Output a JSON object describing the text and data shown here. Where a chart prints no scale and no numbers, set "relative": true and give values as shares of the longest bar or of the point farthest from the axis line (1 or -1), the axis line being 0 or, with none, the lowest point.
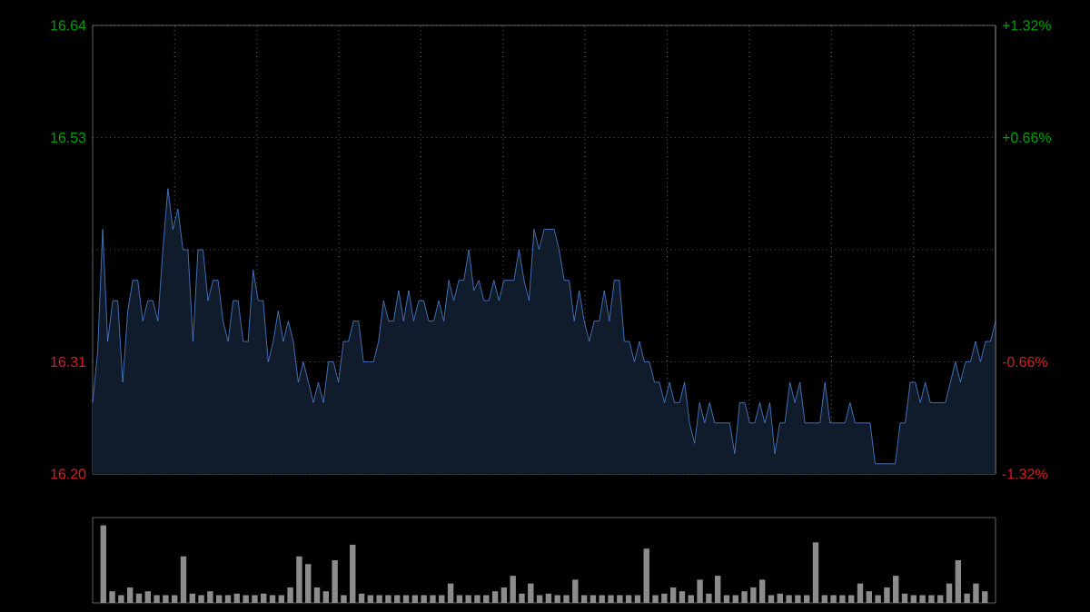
{
  "chart_data": [
    {
      "type": "area",
      "color": "#4f86d9",
      "tick_labels": "y",
      "grid": true,
      "categories": [
        null,
        null,
        null,
        null,
        null,
        null,
        null,
        null,
        null,
        null,
        null,
        null,
        null,
        null,
        null,
        null,
        null,
        null,
        null,
        null,
        null,
        null,
        null,
        null,
        null,
        null,
        null,
        null,
        null,
        null,
        null,
        null,
        null,
        null,
        null,
        null,
        null,
        null,
        null,
        null,
        null,
        null,
        null,
        null,
        null,
        null,
        null,
        null,
        null,
        null,
        null,
        null,
        null,
        null,
        null,
        null,
        null,
        null,
        null,
        null,
        null,
        null,
        null,
        null,
        null,
        null,
        null,
        null,
        null,
        null,
        null,
        null,
        null,
        null,
        null,
        null,
        null,
        null,
        null,
        null,
        null,
        null,
        null,
        null,
        null,
        null,
        null,
        null,
        null,
        null,
        null,
        null,
        null,
        null,
        null,
        null,
        null,
        null,
        null,
        null,
        null,
        null,
        null,
        null,
        null,
        null,
        null,
        null,
        null,
        null,
        null,
        null,
        null,
        null,
        null,
        null,
        null,
        null,
        null,
        null,
        null,
        null,
        null,
        null,
        null,
        null,
        null,
        null,
        null,
        null,
        null,
        null,
        null,
        null,
        null,
        null,
        null,
        null,
        null,
        null,
        null,
        null,
        null,
        null,
        null,
        null,
        null,
        null,
        null,
        null,
        null,
        null,
        null,
        null,
        null,
        null,
        null,
        null,
        null,
        null,
        null,
        null,
        null,
        null,
        null,
        null,
        null,
        null,
        null,
        null,
        null,
        null,
        null,
        null,
        null,
        null,
        null,
        null,
        null,
        null,
        null
      ],
      "values": [
        16.27,
        16.32,
        16.44,
        16.33,
        16.37,
        16.37,
        16.29,
        16.36,
        16.39,
        16.39,
        16.35,
        16.37,
        16.37,
        16.35,
        16.42,
        16.48,
        16.44,
        16.46,
        16.42,
        16.42,
        16.33,
        16.42,
        16.42,
        16.37,
        16.39,
        16.39,
        16.35,
        16.33,
        16.37,
        16.37,
        16.33,
        16.33,
        16.4,
        16.37,
        16.37,
        16.31,
        16.33,
        16.36,
        16.33,
        16.35,
        16.33,
        16.29,
        16.31,
        16.29,
        16.27,
        16.29,
        16.27,
        16.31,
        16.31,
        16.29,
        16.33,
        16.33,
        16.35,
        16.35,
        16.31,
        16.31,
        16.31,
        16.33,
        16.37,
        16.35,
        16.35,
        16.38,
        16.35,
        16.38,
        16.35,
        16.37,
        16.37,
        16.35,
        16.35,
        16.37,
        16.35,
        16.39,
        16.37,
        16.39,
        16.39,
        16.42,
        16.38,
        16.39,
        16.37,
        16.37,
        16.39,
        16.37,
        16.39,
        16.39,
        16.39,
        16.42,
        16.39,
        16.37,
        16.44,
        16.42,
        16.44,
        16.44,
        16.44,
        16.42,
        16.39,
        16.39,
        16.35,
        16.38,
        16.35,
        16.33,
        16.35,
        16.35,
        16.38,
        16.35,
        16.39,
        16.39,
        16.33,
        16.33,
        16.31,
        16.33,
        16.31,
        16.31,
        16.29,
        16.29,
        16.27,
        16.29,
        16.27,
        16.27,
        16.29,
        16.25,
        16.23,
        16.27,
        16.25,
        16.27,
        16.25,
        16.25,
        16.25,
        16.25,
        16.22,
        16.27,
        16.27,
        16.25,
        16.25,
        16.27,
        16.25,
        16.27,
        16.22,
        16.25,
        16.25,
        16.29,
        16.27,
        16.29,
        16.25,
        16.25,
        16.25,
        16.25,
        16.29,
        16.25,
        16.25,
        16.25,
        16.25,
        16.27,
        16.25,
        16.25,
        16.25,
        16.25,
        16.21,
        16.21,
        16.21,
        16.21,
        16.21,
        16.25,
        16.25,
        16.29,
        16.29,
        16.27,
        16.29,
        16.27,
        16.27,
        16.27,
        16.27,
        16.29,
        16.31,
        16.29,
        16.31,
        16.31,
        16.33,
        16.31,
        16.33,
        16.33,
        16.35
      ],
      "ylim": [
        16.2,
        16.64
      ],
      "yticks": [
        {
          "value": 16.64,
          "label": "16.64"
        },
        {
          "value": 16.53,
          "label": "16.53"
        },
        {
          "value": 16.42,
          "label": null
        },
        {
          "value": 16.31,
          "label": "16.31"
        },
        {
          "value": 16.2,
          "label": "16.20"
        }
      ],
      "y2lim": [
        -1.32,
        1.32
      ],
      "y2ticks": [
        {
          "value": 1.32,
          "label": "+1.32%"
        },
        {
          "value": 0.66,
          "label": "+0.66%"
        },
        {
          "value": -0.66,
          "label": "-0.66%"
        },
        {
          "value": -1.32,
          "label": "-1.32%"
        }
      ]
    },
    {
      "type": "bar",
      "relative": true,
      "color": "#8c8c8c",
      "categories": [
        null,
        null,
        null,
        null,
        null,
        null,
        null,
        null,
        null,
        null,
        null,
        null,
        null,
        null,
        null,
        null,
        null,
        null,
        null,
        null,
        null,
        null,
        null,
        null,
        null,
        null,
        null,
        null,
        null,
        null,
        null,
        null,
        null,
        null,
        null,
        null,
        null,
        null,
        null,
        null,
        null,
        null,
        null,
        null,
        null,
        null,
        null,
        null,
        null,
        null,
        null,
        null,
        null,
        null,
        null,
        null,
        null,
        null,
        null,
        null,
        null,
        null,
        null,
        null,
        null,
        null,
        null,
        null,
        null,
        null,
        null,
        null,
        null,
        null,
        null,
        null,
        null,
        null,
        null,
        null,
        null,
        null,
        null,
        null,
        null,
        null,
        null,
        null,
        null,
        null,
        null,
        null,
        null,
        null,
        null,
        null,
        null,
        null,
        null,
        null
      ],
      "values": [
        1.0,
        0.15,
        0.1,
        0.2,
        0.12,
        0.15,
        0.1,
        0.1,
        0.1,
        0.6,
        0.12,
        0.1,
        0.15,
        0.1,
        0.1,
        0.12,
        0.1,
        0.1,
        0.12,
        0.1,
        0.1,
        0.2,
        0.6,
        0.5,
        0.2,
        0.15,
        0.55,
        0.1,
        0.75,
        0.12,
        0.1,
        0.1,
        0.1,
        0.1,
        0.1,
        0.1,
        0.1,
        0.1,
        0.1,
        0.25,
        0.1,
        0.1,
        0.1,
        0.1,
        0.15,
        0.2,
        0.35,
        0.12,
        0.25,
        0.1,
        0.12,
        0.1,
        0.1,
        0.3,
        0.1,
        0.1,
        0.1,
        0.1,
        0.1,
        0.1,
        0.1,
        0.7,
        0.1,
        0.12,
        0.2,
        0.15,
        0.1,
        0.3,
        0.12,
        0.35,
        0.1,
        0.1,
        0.15,
        0.2,
        0.3,
        0.1,
        0.12,
        0.1,
        0.1,
        0.1,
        0.78,
        0.1,
        0.1,
        0.1,
        0.1,
        0.25,
        0.15,
        0.1,
        0.2,
        0.35,
        0.12,
        0.1,
        0.1,
        0.1,
        0.1,
        0.25,
        0.55,
        0.12,
        0.25,
        0.15
      ]
    }
  ]
}
